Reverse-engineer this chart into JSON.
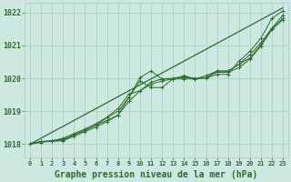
{
  "title": "Graphe pression niveau de la mer (hPa)",
  "background_color": "#cce8e0",
  "plot_bg_color": "#cce8e0",
  "grid_color": "#aaccc0",
  "line_color": "#2d6e2d",
  "xlim": [
    -0.5,
    23.5
  ],
  "ylim": [
    1017.6,
    1022.3
  ],
  "yticks": [
    1018,
    1019,
    1020,
    1021,
    1022
  ],
  "xticks": [
    0,
    1,
    2,
    3,
    4,
    5,
    6,
    7,
    8,
    9,
    10,
    11,
    12,
    13,
    14,
    15,
    16,
    17,
    18,
    19,
    20,
    21,
    22,
    23
  ],
  "hours": [
    0,
    1,
    2,
    3,
    4,
    5,
    6,
    7,
    8,
    9,
    10,
    11,
    12,
    13,
    14,
    15,
    16,
    17,
    18,
    19,
    20,
    21,
    22,
    23
  ],
  "line1": [
    1018.0,
    1018.08,
    1018.08,
    1018.12,
    1018.28,
    1018.42,
    1018.58,
    1018.72,
    1018.88,
    1019.3,
    1019.62,
    1019.88,
    1019.98,
    1020.0,
    1020.05,
    1020.0,
    1020.0,
    1020.12,
    1020.12,
    1020.52,
    1020.82,
    1021.22,
    1021.82,
    1022.05
  ],
  "line2": [
    1018.0,
    1018.08,
    1018.1,
    1018.1,
    1018.24,
    1018.38,
    1018.52,
    1018.68,
    1018.88,
    1019.42,
    1019.92,
    1019.72,
    1019.72,
    1019.98,
    1019.98,
    1019.98,
    1020.02,
    1020.22,
    1020.22,
    1020.42,
    1020.72,
    1021.08,
    1021.52,
    1021.92
  ],
  "line3": [
    1018.0,
    1018.08,
    1018.1,
    1018.15,
    1018.28,
    1018.42,
    1018.58,
    1018.8,
    1019.0,
    1019.42,
    1020.02,
    1020.22,
    1019.98,
    1019.98,
    1020.08,
    1019.98,
    1020.02,
    1020.18,
    1020.18,
    1020.32,
    1020.58,
    1020.98,
    1021.48,
    1021.78
  ],
  "line4": [
    1018.0,
    1018.05,
    1018.1,
    1018.18,
    1018.32,
    1018.46,
    1018.62,
    1018.82,
    1019.08,
    1019.52,
    1019.62,
    1019.82,
    1019.92,
    1019.98,
    1020.02,
    1019.98,
    1020.08,
    1020.22,
    1020.22,
    1020.42,
    1020.62,
    1021.02,
    1021.52,
    1021.82
  ],
  "trend": [
    1018.0,
    1018.18,
    1018.36,
    1018.54,
    1018.72,
    1018.9,
    1019.08,
    1019.26,
    1019.44,
    1019.62,
    1019.8,
    1019.98,
    1020.16,
    1020.34,
    1020.52,
    1020.7,
    1020.88,
    1021.06,
    1021.24,
    1021.42,
    1021.6,
    1021.78,
    1021.96,
    1022.14
  ],
  "title_fontsize": 7,
  "tick_fontsize": 6
}
